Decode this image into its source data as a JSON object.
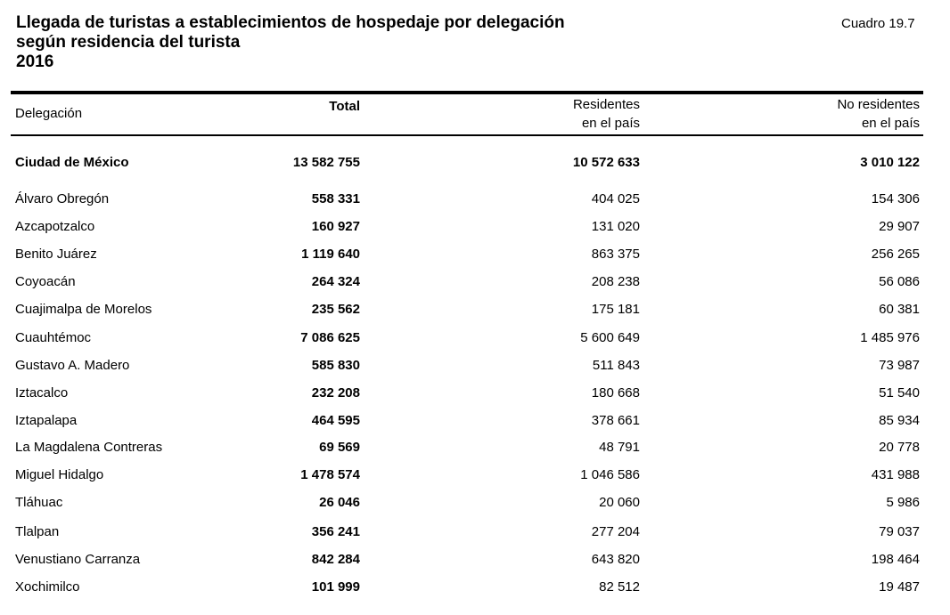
{
  "title": {
    "line1": "Llegada de turistas a establecimientos de hospedaje por delegación",
    "line2": "según residencia del turista",
    "line3": "2016"
  },
  "cuadro": "Cuadro 19.7",
  "headers": {
    "delegacion": "Delegación",
    "total": "Total",
    "residentes_1": "Residentes",
    "residentes_2": "en el país",
    "no_residentes_1": "No residentes",
    "no_residentes_2": "en el país"
  },
  "summary": {
    "name": "Ciudad de México",
    "total": "13 582 755",
    "residentes": "10 572 633",
    "no_residentes": "3 010 122"
  },
  "rows": [
    {
      "name": "Álvaro Obregón",
      "total": "558 331",
      "residentes": "404 025",
      "no_residentes": "154 306"
    },
    {
      "name": "Azcapotzalco",
      "total": "160 927",
      "residentes": "131 020",
      "no_residentes": "29 907"
    },
    {
      "name": "Benito Juárez",
      "total": "1 119 640",
      "residentes": "863 375",
      "no_residentes": "256 265"
    },
    {
      "name": "Coyoacán",
      "total": "264 324",
      "residentes": "208 238",
      "no_residentes": "56 086"
    },
    {
      "name": "Cuajimalpa de Morelos",
      "total": "235 562",
      "residentes": "175 181",
      "no_residentes": "60 381"
    },
    {
      "name": "Cuauhtémoc",
      "total": "7 086 625",
      "residentes": "5 600 649",
      "no_residentes": "1 485 976"
    },
    {
      "name": "Gustavo A. Madero",
      "total": "585 830",
      "residentes": "511 843",
      "no_residentes": "73 987"
    },
    {
      "name": "Iztacalco",
      "total": "232 208",
      "residentes": "180 668",
      "no_residentes": "51 540"
    },
    {
      "name": "Iztapalapa",
      "total": "464 595",
      "residentes": "378 661",
      "no_residentes": "85 934"
    },
    {
      "name": "La Magdalena Contreras",
      "total": "69 569",
      "residentes": "48 791",
      "no_residentes": "20 778"
    },
    {
      "name": "Miguel Hidalgo",
      "total": "1 478 574",
      "residentes": "1 046 586",
      "no_residentes": "431 988"
    },
    {
      "name": "Tláhuac",
      "total": "26 046",
      "residentes": "20 060",
      "no_residentes": "5 986"
    },
    {
      "name": "Tlalpan",
      "total": "356 241",
      "residentes": "277 204",
      "no_residentes": "79 037"
    },
    {
      "name": "Venustiano Carranza",
      "total": "842 284",
      "residentes": "643 820",
      "no_residentes": "198 464"
    },
    {
      "name": "Xochimilco",
      "total": "101 999",
      "residentes": "82 512",
      "no_residentes": "19 487"
    }
  ]
}
